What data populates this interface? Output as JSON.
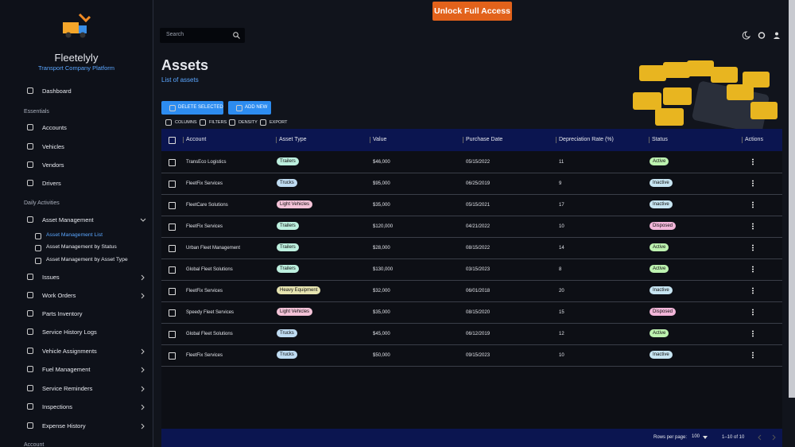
{
  "top_button": "Unlock Full Access",
  "search": {
    "placeholder": "Search"
  },
  "sidebar": {
    "brand": "Fleetelyly",
    "tagline": "Transport Company Platform",
    "dashboard": "Dashboard",
    "essentials": {
      "title": "Essentials",
      "items": [
        "Accounts",
        "Vehicles",
        "Vendors",
        "Drivers"
      ]
    },
    "daily": {
      "title": "Daily Activities",
      "expanded": "Asset Management",
      "sub_items": [
        "Asset Management List",
        "Asset Management by Status",
        "Asset Management by Asset Type"
      ],
      "items": [
        "Issues",
        "Work Orders",
        "Parts Inventory",
        "Service History Logs",
        "Vehicle Assignments",
        "Fuel Management",
        "Service Reminders",
        "Inspections",
        "Expense History"
      ]
    },
    "account": "Account"
  },
  "header": {
    "title": "Assets",
    "subtitle": "List of assets"
  },
  "actions": [
    "DELETE SELECTED",
    "ADD NEW"
  ],
  "toolbar": [
    "COLUMNS",
    "FILTERS",
    "DENSITY",
    "EXPORT"
  ],
  "table": {
    "columns": [
      "Account",
      "Asset Type",
      "Value",
      "Purchase Date",
      "Depreciation Rate (%)",
      "Status",
      "Actions"
    ],
    "rows": [
      [
        "TransEco Logistics",
        "Trailers",
        "$46,000",
        "05/15/2022",
        11,
        "Active"
      ],
      [
        "FleetFix Services",
        "Trucks",
        "$95,000",
        "06/25/2019",
        9,
        "Inactive"
      ],
      [
        "FleetCare Solutions",
        "Light Vehicles",
        "$35,000",
        "05/15/2021",
        17,
        "Inactive"
      ],
      [
        "FleetFix Services",
        "Trailers",
        "$120,000",
        "04/21/2022",
        10,
        "Disposed"
      ],
      [
        "Urban Fleet Management",
        "Trailers",
        "$28,000",
        "08/15/2022",
        14,
        "Active"
      ],
      [
        "Global Fleet Solutions",
        "Trailers",
        "$130,000",
        "03/15/2023",
        8,
        "Active"
      ],
      [
        "FleetFix Services",
        "Heavy Equipment",
        "$32,000",
        "06/01/2018",
        20,
        "Inactive"
      ],
      [
        "Speedy Fleet Services",
        "Light Vehicles",
        "$35,000",
        "08/15/2020",
        15,
        "Disposed"
      ],
      [
        "Global Fleet Solutions",
        "Trucks",
        "$45,000",
        "06/12/2019",
        12,
        "Active"
      ],
      [
        "FleetFix Services",
        "Trucks",
        "$50,000",
        "09/15/2023",
        10,
        "Inactive"
      ]
    ]
  },
  "footer": {
    "rows_per_page_label": "Rows per page:",
    "rows_per_page": "100",
    "range": "1–10 of 10"
  }
}
